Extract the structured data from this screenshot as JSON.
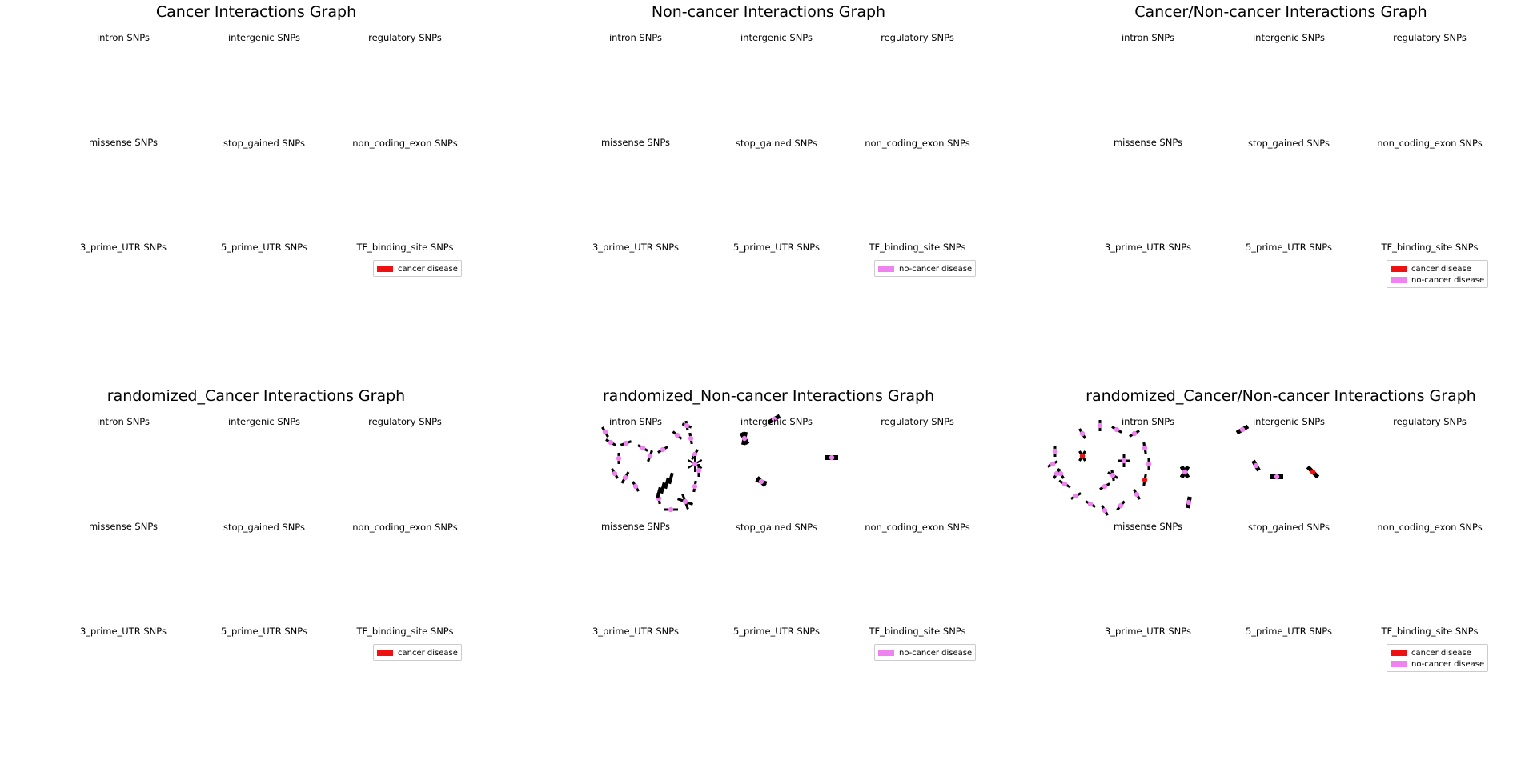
{
  "colors": {
    "cancer": "#ee1111",
    "noncancer": "#ee82ee",
    "edge": "#000000"
  },
  "subplot_labels": [
    "intron SNPs",
    "intergenic SNPs",
    "regulatory SNPs",
    "missense SNPs",
    "stop_gained SNPs",
    "non_coding_exon SNPs",
    "3_prime_UTR SNPs",
    "5_prime_UTR SNPs",
    "TF_binding_site SNPs"
  ],
  "legend_labels": {
    "cancer": "cancer disease",
    "noncancer": "no-cancer disease"
  },
  "chart_data": [
    {
      "type": "network",
      "title": "Cancer Interactions Graph",
      "subplots": [
        "intron SNPs",
        "intergenic SNPs",
        "regulatory SNPs",
        "missense SNPs",
        "stop_gained SNPs",
        "non_coding_exon SNPs",
        "3_prime_UTR SNPs",
        "5_prime_UTR SNPs",
        "TF_binding_site SNPs"
      ],
      "legend": [
        "cancer disease"
      ],
      "networks": {}
    },
    {
      "type": "network",
      "title": "Non-cancer Interactions Graph",
      "subplots": [
        "intron SNPs",
        "intergenic SNPs",
        "regulatory SNPs",
        "missense SNPs",
        "stop_gained SNPs",
        "non_coding_exon SNPs",
        "3_prime_UTR SNPs",
        "5_prime_UTR SNPs",
        "TF_binding_site SNPs"
      ],
      "legend": [
        "no-cancer disease"
      ],
      "networks": {}
    },
    {
      "type": "network",
      "title": "Cancer/Non-cancer Interactions Graph",
      "subplots": [
        "intron SNPs",
        "intergenic SNPs",
        "regulatory SNPs",
        "missense SNPs",
        "stop_gained SNPs",
        "non_coding_exon SNPs",
        "3_prime_UTR SNPs",
        "5_prime_UTR SNPs",
        "TF_binding_site SNPs"
      ],
      "legend": [
        "cancer disease",
        "no-cancer disease"
      ],
      "networks": {}
    },
    {
      "type": "network",
      "title": "randomized_Cancer Interactions Graph",
      "subplots": [
        "intron SNPs",
        "intergenic SNPs",
        "regulatory SNPs",
        "missense SNPs",
        "stop_gained SNPs",
        "non_coding_exon SNPs",
        "3_prime_UTR SNPs",
        "5_prime_UTR SNPs",
        "TF_binding_site SNPs"
      ],
      "legend": [
        "cancer disease"
      ],
      "networks": {}
    },
    {
      "type": "network",
      "title": "randomized_Non-cancer Interactions Graph",
      "subplots": [
        "intron SNPs",
        "intergenic SNPs",
        "regulatory SNPs",
        "missense SNPs",
        "stop_gained SNPs",
        "non_coding_exon SNPs",
        "3_prime_UTR SNPs",
        "5_prime_UTR SNPs",
        "TF_binding_site SNPs"
      ],
      "legend": [
        "no-cancer disease"
      ],
      "networks": {
        "intron SNPs": {
          "nodes": 22,
          "colors": [
            "noncancer"
          ]
        },
        "intergenic SNPs": {
          "nodes": 5,
          "colors": [
            "noncancer"
          ]
        }
      }
    },
    {
      "type": "network",
      "title": "randomized_Cancer/Non-cancer Interactions Graph",
      "subplots": [
        "intron SNPs",
        "intergenic SNPs",
        "regulatory SNPs",
        "missense SNPs",
        "stop_gained SNPs",
        "non_coding_exon SNPs",
        "3_prime_UTR SNPs",
        "5_prime_UTR SNPs",
        "TF_binding_site SNPs"
      ],
      "legend": [
        "cancer disease",
        "no-cancer disease"
      ],
      "networks": {
        "intron SNPs": {
          "nodes": 24,
          "colors": [
            "noncancer",
            "cancer"
          ]
        },
        "intergenic SNPs": {
          "nodes": 5,
          "colors": [
            "noncancer",
            "cancer"
          ]
        }
      }
    }
  ]
}
